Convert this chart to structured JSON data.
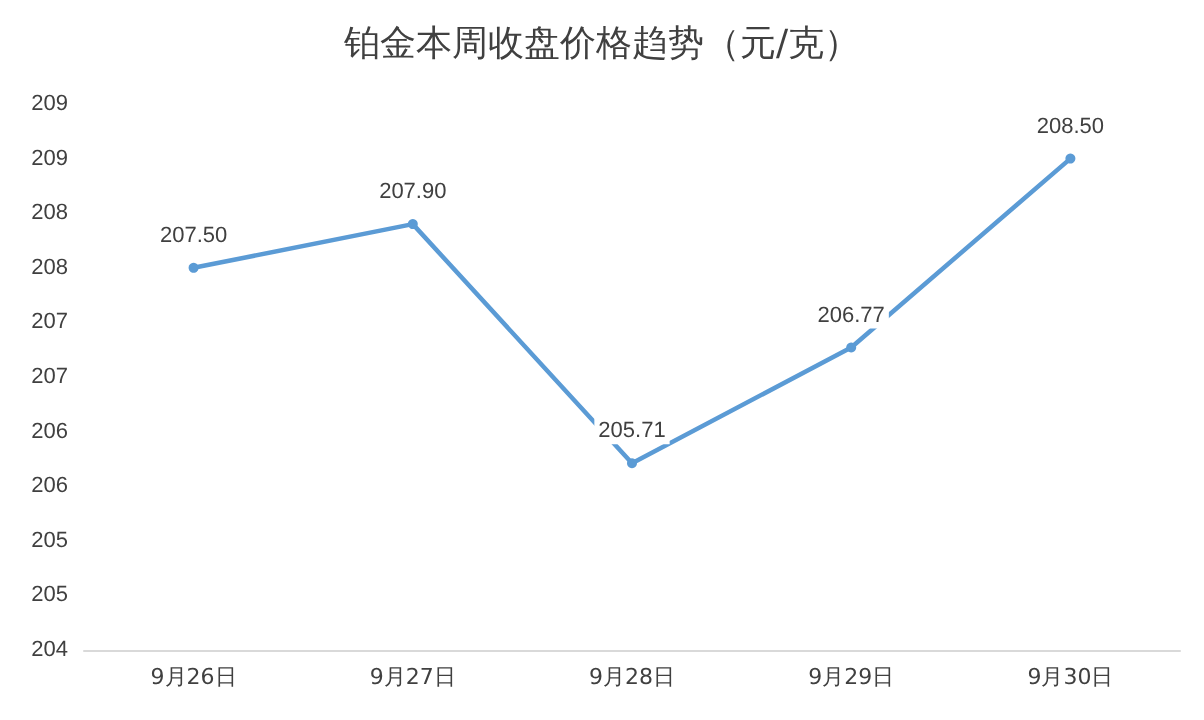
{
  "chart_data": {
    "type": "line",
    "title": "铂金本周收盘价格趋势（元/克）",
    "categories": [
      "9月26日",
      "9月27日",
      "9月28日",
      "9月29日",
      "9月30日"
    ],
    "series": [
      {
        "color": "#5b9bd5",
        "values": [
          207.5,
          207.9,
          205.71,
          206.77,
          208.5
        ],
        "value_labels": [
          "207.50",
          "207.90",
          "205.71",
          "206.77",
          "208.50"
        ]
      }
    ],
    "ylim": [
      204,
      209
    ],
    "yticks": [
      {
        "value": 204,
        "label": "204"
      },
      {
        "value": 204.5,
        "label": "205"
      },
      {
        "value": 205,
        "label": "205"
      },
      {
        "value": 205.5,
        "label": "206"
      },
      {
        "value": 206,
        "label": "206"
      },
      {
        "value": 206.5,
        "label": "207"
      },
      {
        "value": 207,
        "label": "207"
      },
      {
        "value": 207.5,
        "label": "208"
      },
      {
        "value": 208,
        "label": "208"
      },
      {
        "value": 208.5,
        "label": "209"
      },
      {
        "value": 209,
        "label": "209"
      }
    ],
    "marker": "circle",
    "line_style": "solid"
  }
}
